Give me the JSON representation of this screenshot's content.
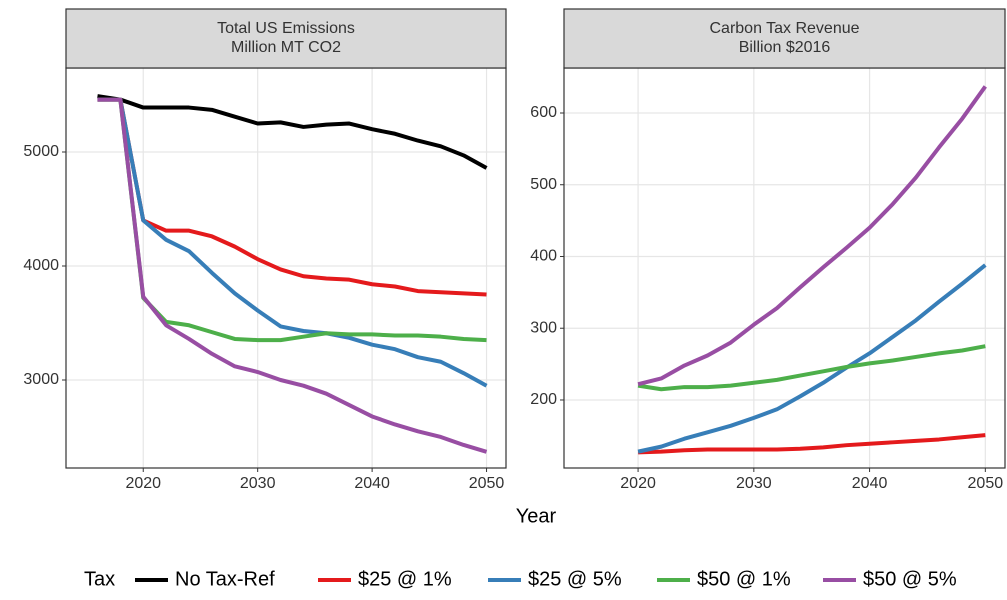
{
  "chart_data": [
    {
      "type": "line",
      "title": "Total US Emissions",
      "subtitle": "Million MT CO2",
      "x": [
        2016,
        2018,
        2020,
        2022,
        2024,
        2026,
        2028,
        2030,
        2032,
        2034,
        2036,
        2038,
        2040,
        2042,
        2044,
        2046,
        2048,
        2050
      ],
      "series": [
        {
          "name": "No Tax-Ref",
          "color": "#000000",
          "values": [
            5490,
            5460,
            5390,
            5390,
            5390,
            5370,
            5310,
            5250,
            5260,
            5220,
            5240,
            5250,
            5200,
            5160,
            5100,
            5050,
            4970,
            4860
          ]
        },
        {
          "name": "$25 @ 1%",
          "color": "#e41a1c",
          "values": [
            5460,
            5460,
            4400,
            4310,
            4310,
            4260,
            4170,
            4060,
            3970,
            3910,
            3890,
            3880,
            3840,
            3820,
            3780,
            3770,
            3760,
            3750
          ]
        },
        {
          "name": "$25 @ 5%",
          "color": "#377eb8",
          "values": [
            5460,
            5460,
            4400,
            4230,
            4130,
            3940,
            3760,
            3610,
            3470,
            3430,
            3410,
            3370,
            3310,
            3270,
            3200,
            3160,
            3060,
            2950
          ]
        },
        {
          "name": "$50 @ 1%",
          "color": "#4daf4a",
          "values": [
            5460,
            5460,
            3720,
            3510,
            3480,
            3420,
            3360,
            3350,
            3350,
            3380,
            3410,
            3400,
            3400,
            3390,
            3390,
            3380,
            3360,
            3350
          ]
        },
        {
          "name": "$50 @ 5%",
          "color": "#984ea3",
          "values": [
            5460,
            5460,
            3730,
            3480,
            3360,
            3230,
            3120,
            3070,
            3000,
            2950,
            2880,
            2780,
            2680,
            2610,
            2550,
            2500,
            2430,
            2370
          ]
        }
      ],
      "xlim": [
        2013.25,
        2051.7
      ],
      "xticks": [
        2020,
        2030,
        2040,
        2050
      ],
      "ylim": [
        2228,
        5737
      ],
      "yticks": [
        3000,
        4000,
        5000
      ],
      "grid": true
    },
    {
      "type": "line",
      "title": "Carbon Tax Revenue",
      "subtitle": "Billion $2016",
      "x": [
        2020,
        2022,
        2024,
        2026,
        2028,
        2030,
        2032,
        2034,
        2036,
        2038,
        2040,
        2042,
        2044,
        2046,
        2048,
        2050
      ],
      "series": [
        {
          "name": "$25 @ 1%",
          "color": "#e41a1c",
          "values": [
            127,
            128,
            130,
            131,
            131,
            131,
            131,
            132,
            134,
            137,
            139,
            141,
            143,
            145,
            148,
            151
          ]
        },
        {
          "name": "$25 @ 5%",
          "color": "#377eb8",
          "values": [
            128,
            135,
            146,
            155,
            164,
            175,
            187,
            205,
            224,
            245,
            265,
            288,
            311,
            337,
            362,
            388
          ]
        },
        {
          "name": "$50 @ 1%",
          "color": "#4daf4a",
          "values": [
            220,
            215,
            218,
            218,
            220,
            224,
            228,
            234,
            240,
            246,
            251,
            255,
            260,
            265,
            269,
            275
          ]
        },
        {
          "name": "$50 @ 5%",
          "color": "#984ea3",
          "values": [
            222,
            230,
            248,
            262,
            280,
            305,
            328,
            357,
            385,
            412,
            440,
            473,
            510,
            552,
            592,
            637
          ]
        }
      ],
      "xlim": [
        2013.6,
        2051.7
      ],
      "xticks": [
        2020,
        2030,
        2040,
        2050
      ],
      "ylim": [
        105.2,
        662.7
      ],
      "yticks": [
        200,
        300,
        400,
        500,
        600
      ],
      "grid": true
    }
  ],
  "xlabel": "Year",
  "legend_title": "Tax"
}
